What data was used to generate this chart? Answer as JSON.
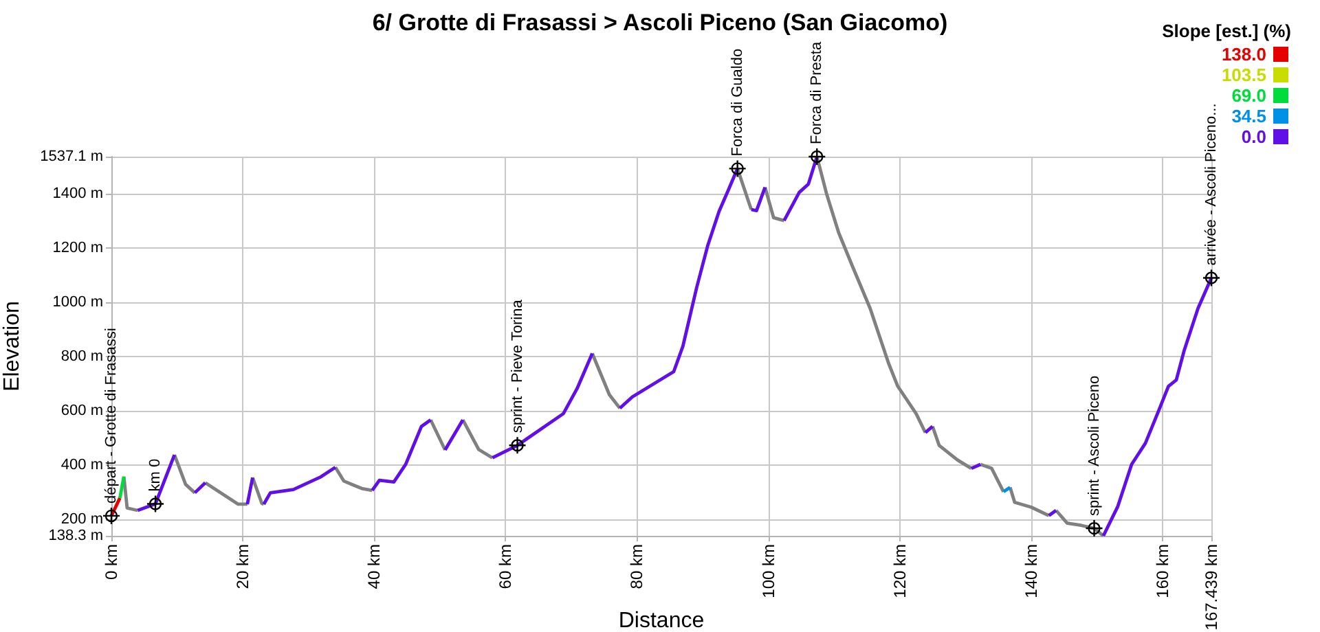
{
  "chart_data": {
    "type": "line",
    "title": "6/ Grotte di Frasassi > Ascoli Piceno (San Giacomo)",
    "xlabel": "Distance",
    "ylabel": "Elevation",
    "legend_title": "Slope [est.] (%)",
    "xlim": [
      0,
      167.439
    ],
    "xticks": [
      {
        "value": 0,
        "label": "0 km"
      },
      {
        "value": 20,
        "label": "20 km"
      },
      {
        "value": 40,
        "label": "40 km"
      },
      {
        "value": 60,
        "label": "60 km"
      },
      {
        "value": 80,
        "label": "80 km"
      },
      {
        "value": 100,
        "label": "100 km"
      },
      {
        "value": 120,
        "label": "120 km"
      },
      {
        "value": 140,
        "label": "140 km"
      },
      {
        "value": 160,
        "label": "160 km"
      },
      {
        "value": 167.439,
        "label": "167.439 km"
      }
    ],
    "ylim": [
      138.3,
      1537.1
    ],
    "yticks": [
      {
        "value": 138.3,
        "label": "138.3 m"
      },
      {
        "value": 200,
        "label": "200 m"
      },
      {
        "value": 400,
        "label": "400 m"
      },
      {
        "value": 600,
        "label": "600 m"
      },
      {
        "value": 800,
        "label": "800 m"
      },
      {
        "value": 1000,
        "label": "1000 m"
      },
      {
        "value": 1200,
        "label": "1200 m"
      },
      {
        "value": 1400,
        "label": "1400 m"
      },
      {
        "value": 1537.1,
        "label": "1537.1 m"
      }
    ],
    "grid": true,
    "legend": "top right",
    "series": [
      {
        "name": "138.0",
        "color": "#e60000",
        "x": [
          0,
          1.3
        ],
        "values": [
          212,
          278
        ]
      },
      {
        "name": "103.5",
        "color": "#c8dc00"
      },
      {
        "name": "69.0",
        "color": "#00dc3c",
        "x": [
          1.3,
          1.9
        ],
        "values": [
          278,
          357
        ]
      },
      {
        "name": "34.5",
        "color": "#0090e6",
        "x": [
          135.8,
          136.8
        ],
        "values": [
          301,
          317
        ]
      },
      {
        "name": "0.0",
        "color": "#6010e6",
        "x": [
          4.0,
          6.7,
          9.6,
          null,
          12.7,
          14.3,
          null,
          20.7,
          21.5,
          null,
          23.2,
          24.2,
          27.7,
          31.9,
          34.1,
          null,
          39.7,
          40.8,
          43.0,
          44.8,
          47.2,
          48.6,
          null,
          50.8,
          53.5,
          null,
          58.0,
          61.8,
          68.8,
          70.9,
          73.2,
          null,
          77.4,
          79.3,
          83.5,
          85.6,
          87.0,
          89.1,
          90.8,
          92.5,
          93.9,
          95.3,
          null,
          97.4,
          98.2,
          99.5,
          null,
          102.4,
          104.7,
          106.1,
          107.4,
          null,
          123.9,
          125.0,
          null,
          130.9,
          132.3,
          null,
          142.7,
          143.8,
          null,
          151.0,
          153.2,
          155.3,
          157.4,
          159.5,
          160.9,
          162.1,
          163.3,
          165.4,
          167.439
        ],
        "values": [
          232,
          256,
          437,
          null,
          297,
          334,
          null,
          255,
          353,
          null,
          255,
          297,
          309,
          356,
          391,
          null,
          306,
          343,
          337,
          402,
          542,
          566,
          null,
          455,
          566,
          null,
          426,
          472,
          589,
          682,
          811,
          null,
          609,
          651,
          713,
          744,
          838,
          1055,
          1211,
          1335,
          1413,
          1493,
          null,
          1342,
          1338,
          1424,
          null,
          1301,
          1405,
          1436,
          1537.1,
          null,
          519,
          542,
          null,
          387,
          402,
          null,
          213,
          232,
          null,
          138.3,
          247,
          402,
          480,
          605,
          690,
          713,
          822,
          977,
          1090
        ]
      },
      {
        "color": "#808080",
        "x": [
          1.9,
          2.4,
          4.0,
          null,
          9.6,
          11.3,
          12.7,
          null,
          14.3,
          19.3,
          20.7,
          null,
          21.5,
          22.9,
          23.2,
          null,
          34.1,
          35.4,
          38.1,
          39.7,
          null,
          48.6,
          50.8,
          null,
          53.5,
          55.9,
          58.0,
          null,
          73.2,
          75.8,
          77.4,
          null,
          95.3,
          97.4,
          null,
          99.5,
          100.8,
          102.4,
          null,
          107.4,
          108.9,
          110.7,
          112.8,
          115.5,
          118.3,
          119.7,
          122.5,
          123.9,
          null,
          125.0,
          126.0,
          128.8,
          130.9,
          null,
          132.3,
          134.0,
          135.8,
          null,
          136.8,
          137.5,
          140.0,
          142.7,
          null,
          143.8,
          145.5,
          147.6,
          149.6,
          151.0
        ],
        "values": [
          357,
          241,
          232,
          null,
          437,
          328,
          297,
          null,
          334,
          255,
          255,
          null,
          353,
          258,
          255,
          null,
          391,
          340,
          313,
          306,
          null,
          566,
          455,
          null,
          566,
          457,
          426,
          null,
          811,
          659,
          609,
          null,
          1493,
          1342,
          null,
          1424,
          1312,
          1301,
          null,
          1537.1,
          1397,
          1257,
          1133,
          977,
          775,
          690,
          589,
          519,
          null,
          542,
          472,
          418,
          387,
          null,
          402,
          387,
          301,
          null,
          317,
          262,
          244,
          213,
          null,
          232,
          185,
          177,
          166,
          138.3
        ]
      }
    ],
    "annotations": [
      {
        "text": "départ - Grotte di Frasassi",
        "x": 0,
        "y": 212
      },
      {
        "text": "km 0",
        "x": 6.7,
        "y": 256
      },
      {
        "text": "sprint - Pieve Torina",
        "x": 61.8,
        "y": 472
      },
      {
        "text": "Forca di Gualdo",
        "x": 95.3,
        "y": 1493
      },
      {
        "text": "Forca di Presta",
        "x": 107.4,
        "y": 1537.1
      },
      {
        "text": "sprint - Ascoli Piceno",
        "x": 149.6,
        "y": 166
      },
      {
        "text": "arrivée - Ascoli Piceno...",
        "x": 167.439,
        "y": 1090
      }
    ]
  }
}
